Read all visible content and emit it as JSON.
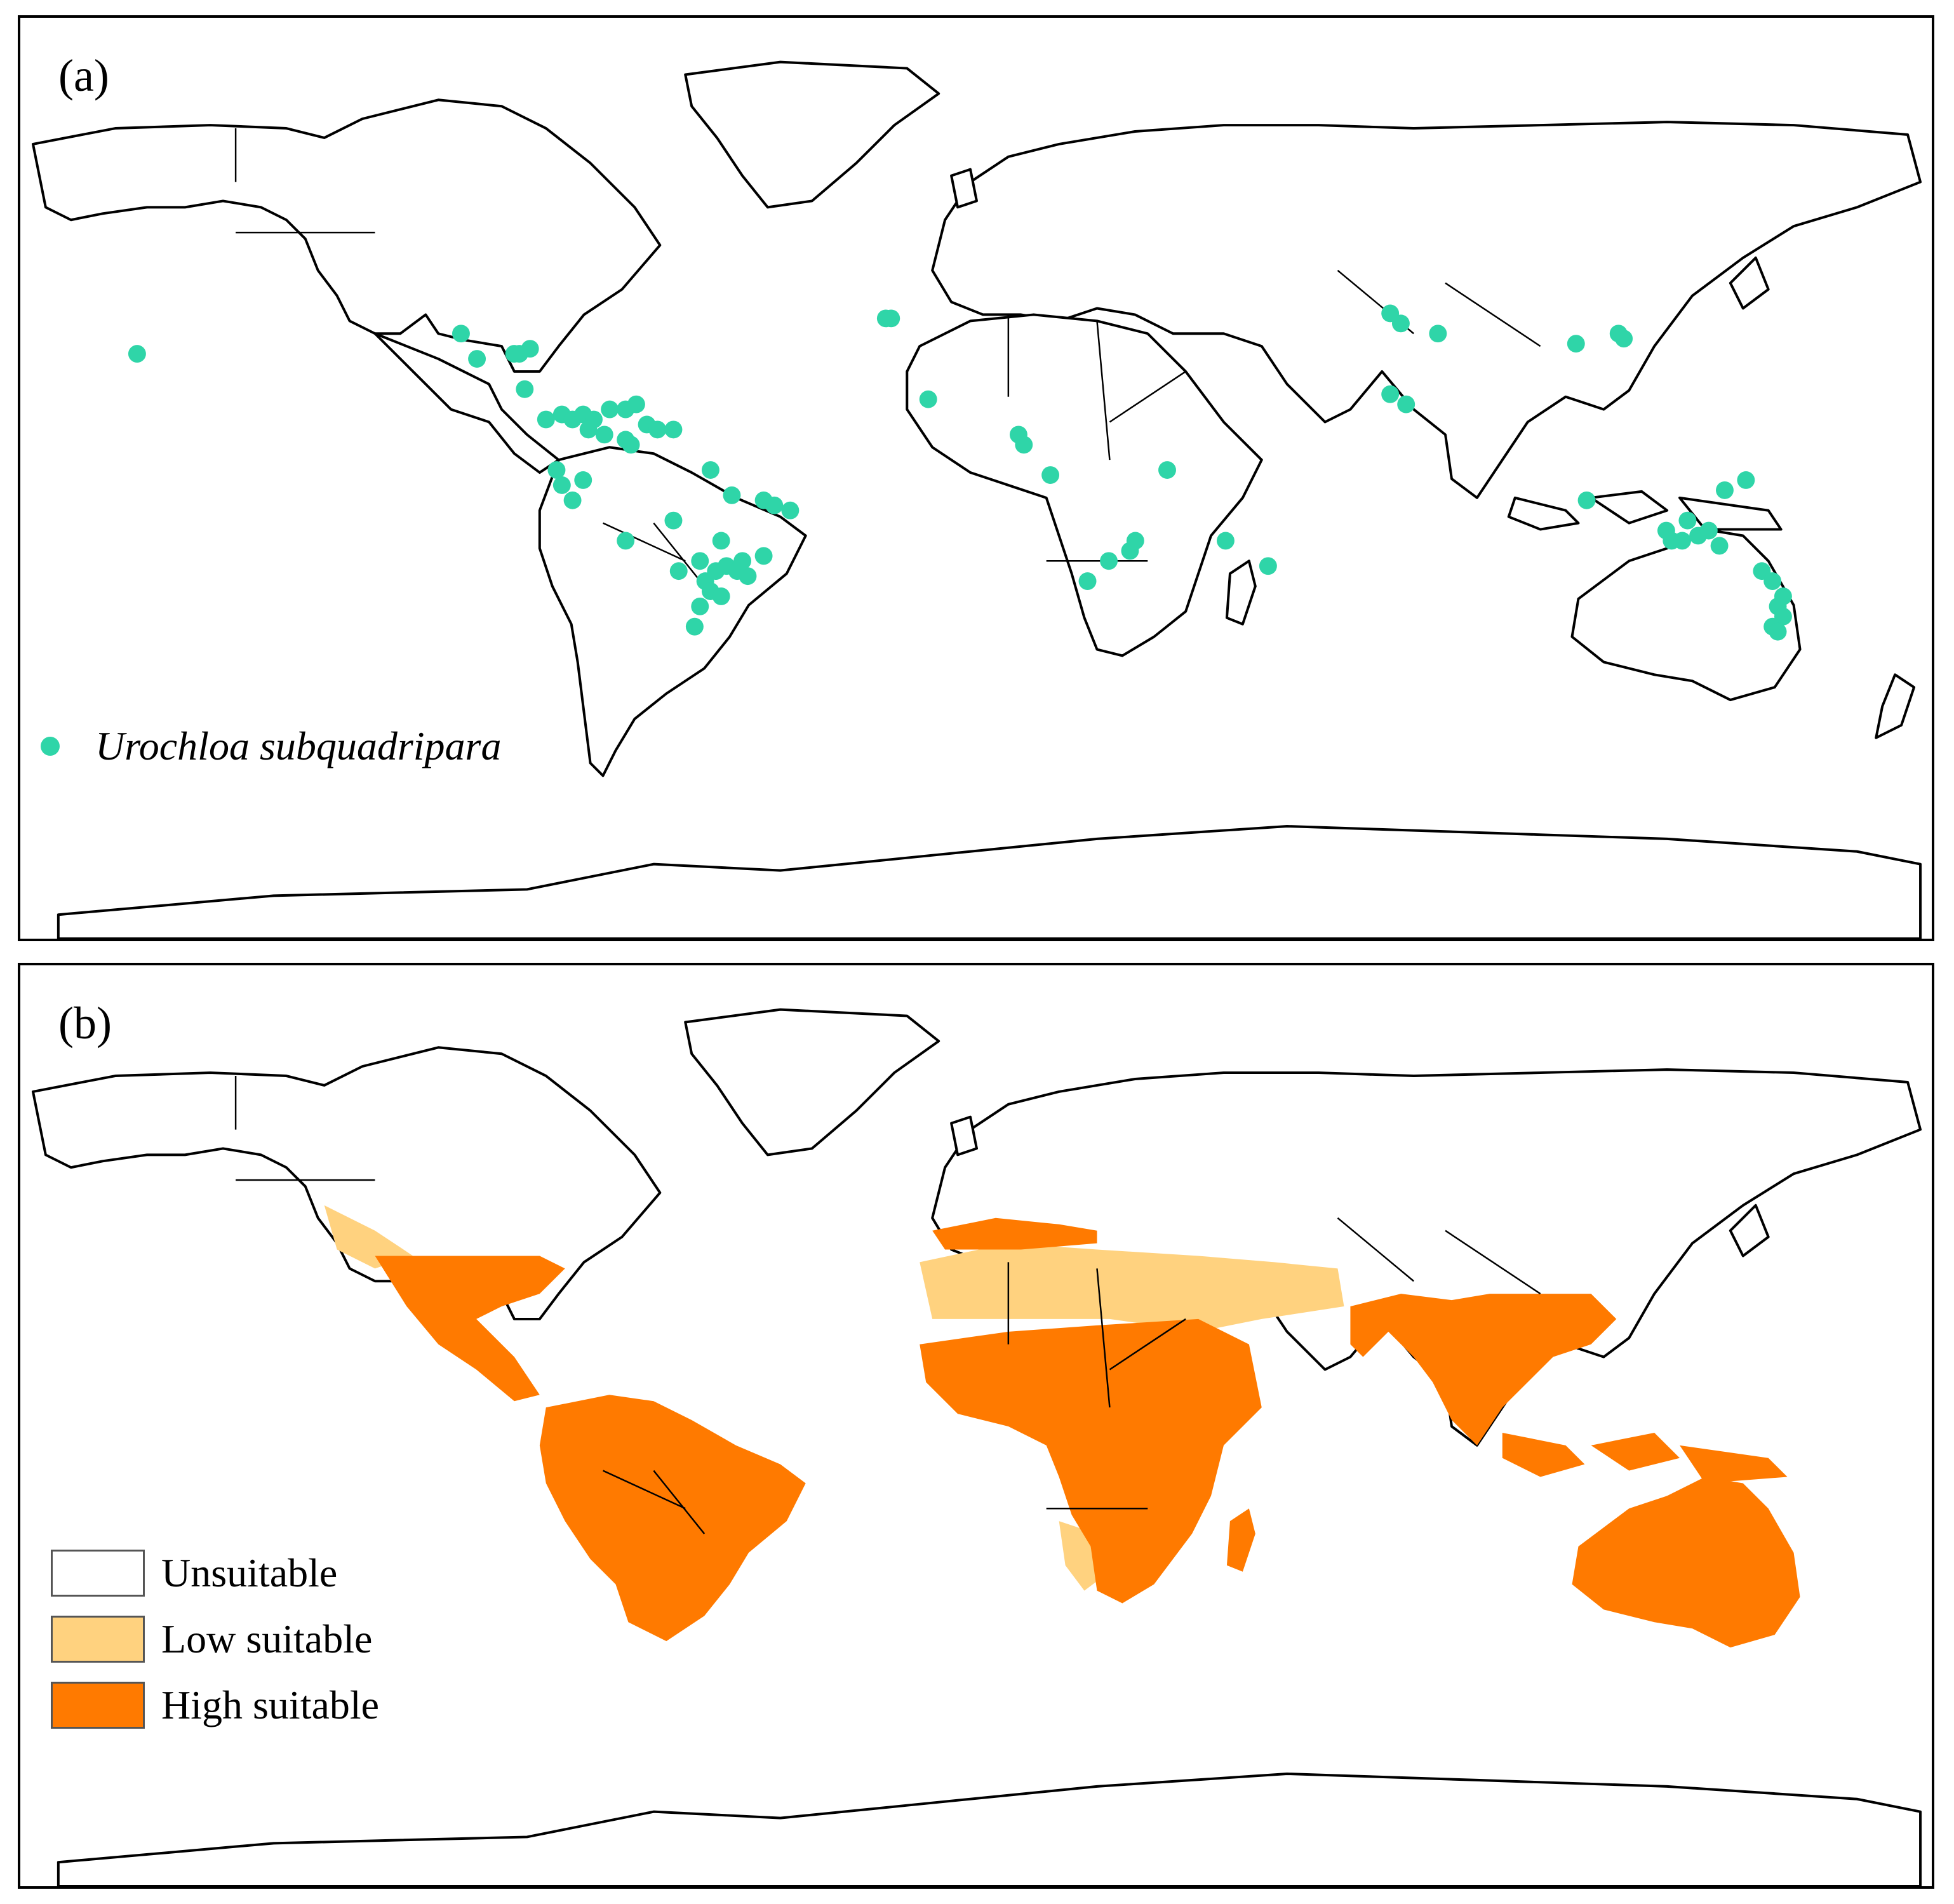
{
  "colors": {
    "occurrence": "#2fd5a8",
    "unsuitable": "#ffffff",
    "low_suitable": "#ffd27f",
    "high_suitable": "#ff7a00"
  },
  "panel_a": {
    "label": "(a)",
    "legend_label": "Urochloa subquadripara",
    "occurrence_points_lonlat": [
      [
        -158,
        21
      ],
      [
        -97,
        25
      ],
      [
        -94,
        20
      ],
      [
        -86,
        21
      ],
      [
        -84,
        22
      ],
      [
        -87,
        21
      ],
      [
        -85,
        14
      ],
      [
        -81,
        8
      ],
      [
        -78,
        9
      ],
      [
        -76,
        8
      ],
      [
        -74,
        9
      ],
      [
        -72,
        8
      ],
      [
        -69,
        10
      ],
      [
        -66,
        10
      ],
      [
        -64,
        11
      ],
      [
        -62,
        7
      ],
      [
        -60,
        6
      ],
      [
        -57,
        6
      ],
      [
        -73,
        6
      ],
      [
        -70,
        5
      ],
      [
        -66,
        4
      ],
      [
        -79,
        -2
      ],
      [
        -78,
        -5
      ],
      [
        -76,
        -8
      ],
      [
        -50,
        -2
      ],
      [
        -46,
        -7
      ],
      [
        -40,
        -8
      ],
      [
        -38,
        -9
      ],
      [
        -35,
        -10
      ],
      [
        -57,
        -12
      ],
      [
        -48,
        -16
      ],
      [
        -52,
        -20
      ],
      [
        -49,
        -22
      ],
      [
        -47,
        -21
      ],
      [
        -45,
        -22
      ],
      [
        -43,
        -23
      ],
      [
        -44,
        -20
      ],
      [
        -40,
        -19
      ],
      [
        -51,
        -24
      ],
      [
        -50,
        -26
      ],
      [
        -48,
        -27
      ],
      [
        -52,
        -29
      ],
      [
        -53,
        -33
      ],
      [
        -56,
        -22
      ],
      [
        -66,
        -16
      ],
      [
        -74,
        -4
      ],
      [
        -65,
        3
      ],
      [
        -17,
        28
      ],
      [
        -16,
        28
      ],
      [
        -9,
        12
      ],
      [
        8,
        5
      ],
      [
        9,
        3
      ],
      [
        14,
        -3
      ],
      [
        36,
        -2
      ],
      [
        29,
        -18
      ],
      [
        30,
        -16
      ],
      [
        25,
        -20
      ],
      [
        21,
        -24
      ],
      [
        47,
        -16
      ],
      [
        55,
        -21
      ],
      [
        78,
        29
      ],
      [
        80,
        27
      ],
      [
        78,
        13
      ],
      [
        81,
        11
      ],
      [
        87,
        25
      ],
      [
        113,
        23
      ],
      [
        121,
        25
      ],
      [
        122,
        24
      ],
      [
        115,
        -8
      ],
      [
        145,
        -4
      ],
      [
        141,
        -6
      ],
      [
        134,
        -12
      ],
      [
        130,
        -14
      ],
      [
        131,
        -16
      ],
      [
        133,
        -16
      ],
      [
        136,
        -15
      ],
      [
        138,
        -14
      ],
      [
        140,
        -17
      ],
      [
        148,
        -22
      ],
      [
        150,
        -24
      ],
      [
        152,
        -27
      ],
      [
        151,
        -29
      ],
      [
        152,
        -31
      ],
      [
        150,
        -33
      ],
      [
        151,
        -34
      ]
    ]
  },
  "panel_b": {
    "label": "(b)",
    "legend": [
      {
        "label": "Unsuitable",
        "color_key": "unsuitable"
      },
      {
        "label": "Low suitable",
        "color_key": "low_suitable"
      },
      {
        "label": "High suitable",
        "color_key": "high_suitable"
      }
    ]
  }
}
